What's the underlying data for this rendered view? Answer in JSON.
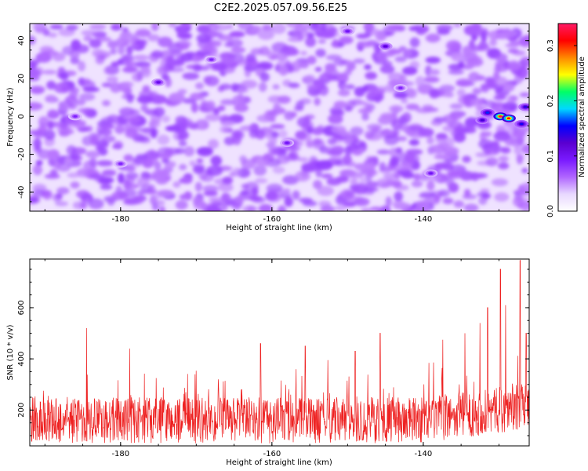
{
  "figure_title": "C2E2.2025.057.09.56.E25",
  "colors": {
    "snr_line": "#ee2222",
    "colormap": [
      "#ffffff",
      "#e8d8ff",
      "#b066ff",
      "#7a1aff",
      "#5a00d0",
      "#0000ff",
      "#00d8ff",
      "#00ff66",
      "#ffff00",
      "#ff8800",
      "#ff0000",
      "#ff1a66"
    ]
  },
  "chart_data": [
    {
      "type": "heatmap",
      "xlabel": "Height of straight line (km)",
      "ylabel": "Frequency (Hz)",
      "xlim": [
        -192,
        -126
      ],
      "ylim": [
        -50,
        49
      ],
      "xticks": [
        -180,
        -160,
        -140
      ],
      "yticks": [
        -40,
        -20,
        0,
        20,
        40
      ],
      "colorbar": {
        "label": "Normalized spectral amplitude",
        "range": [
          0.0,
          0.34
        ],
        "ticks": [
          0.0,
          0.1,
          0.2,
          0.3
        ],
        "tick_labels": [
          "0.0",
          "0.1",
          "0.2",
          "0.3"
        ]
      },
      "background_level": 0.06,
      "hotspots": [
        {
          "x": -129.8,
          "y": 0,
          "value": 0.33
        },
        {
          "x": -128.7,
          "y": -1,
          "value": 0.31
        },
        {
          "x": -131.5,
          "y": 2,
          "value": 0.16
        },
        {
          "x": -127.0,
          "y": -4,
          "value": 0.15
        },
        {
          "x": -126.5,
          "y": 5,
          "value": 0.14
        },
        {
          "x": -132.2,
          "y": -2,
          "value": 0.13
        },
        {
          "x": -145.0,
          "y": 37,
          "value": 0.12
        },
        {
          "x": -175.0,
          "y": 18,
          "value": 0.11
        },
        {
          "x": -139.0,
          "y": -30,
          "value": 0.1
        },
        {
          "x": -158.0,
          "y": -14,
          "value": 0.1
        },
        {
          "x": -150.0,
          "y": 45,
          "value": 0.1
        },
        {
          "x": -186.0,
          "y": 0,
          "value": 0.09
        },
        {
          "x": -168.0,
          "y": 30,
          "value": 0.09
        },
        {
          "x": -180.0,
          "y": -25,
          "value": 0.09
        },
        {
          "x": -143.0,
          "y": 15,
          "value": 0.09
        }
      ]
    },
    {
      "type": "line",
      "xlabel": "Height of straight line (km)",
      "ylabel": "SNR (10 * v/v)",
      "xlim": [
        -192,
        -126
      ],
      "ylim": [
        60,
        790
      ],
      "xticks": [
        -180,
        -160,
        -140
      ],
      "yticks": [
        200,
        400,
        600
      ],
      "series": [
        {
          "color": "#ee2222",
          "baseline": 160,
          "noise_amplitude": 90,
          "peaks": [
            {
              "x": -184.5,
              "y": 520
            },
            {
              "x": -178.8,
              "y": 440
            },
            {
              "x": -161.5,
              "y": 460
            },
            {
              "x": -155.6,
              "y": 450
            },
            {
              "x": -149.0,
              "y": 430
            },
            {
              "x": -145.7,
              "y": 500
            },
            {
              "x": -137.4,
              "y": 475
            },
            {
              "x": -134.5,
              "y": 500
            },
            {
              "x": -132.5,
              "y": 540
            },
            {
              "x": -131.5,
              "y": 600
            },
            {
              "x": -129.8,
              "y": 750
            },
            {
              "x": -129.1,
              "y": 610
            },
            {
              "x": -127.2,
              "y": 785
            },
            {
              "x": -126.4,
              "y": 500
            }
          ]
        }
      ]
    }
  ]
}
